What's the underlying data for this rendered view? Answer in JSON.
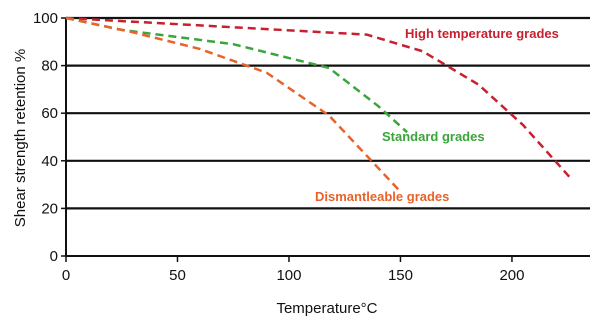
{
  "chart_data": {
    "type": "line",
    "title": "",
    "xlabel": "Temperature°C",
    "ylabel": "Shear strength retention %",
    "xlim": [
      0,
      235
    ],
    "ylim": [
      0,
      100
    ],
    "x_ticks": [
      0,
      50,
      100,
      150,
      200
    ],
    "y_ticks": [
      0,
      20,
      40,
      60,
      80,
      100
    ],
    "grid": "horizontal",
    "legend": "none",
    "series": [
      {
        "name": "High temperature grades",
        "color": "#c8202f",
        "style": "dashed",
        "points": [
          [
            0,
            100
          ],
          [
            135,
            93
          ],
          [
            160,
            86
          ],
          [
            185,
            72
          ],
          [
            205,
            55
          ],
          [
            226,
            33
          ]
        ]
      },
      {
        "name": "Standard grades",
        "color": "#3aa53a",
        "style": "dashed",
        "points": [
          [
            0,
            100
          ],
          [
            25,
            95
          ],
          [
            75,
            89
          ],
          [
            118,
            79
          ],
          [
            140,
            63
          ],
          [
            153,
            52
          ]
        ]
      },
      {
        "name": "Dismantleable grades",
        "color": "#e8622a",
        "style": "dashed",
        "points": [
          [
            0,
            100
          ],
          [
            30,
            94
          ],
          [
            60,
            87
          ],
          [
            90,
            77
          ],
          [
            118,
            59
          ],
          [
            149,
            28
          ]
        ]
      }
    ]
  }
}
